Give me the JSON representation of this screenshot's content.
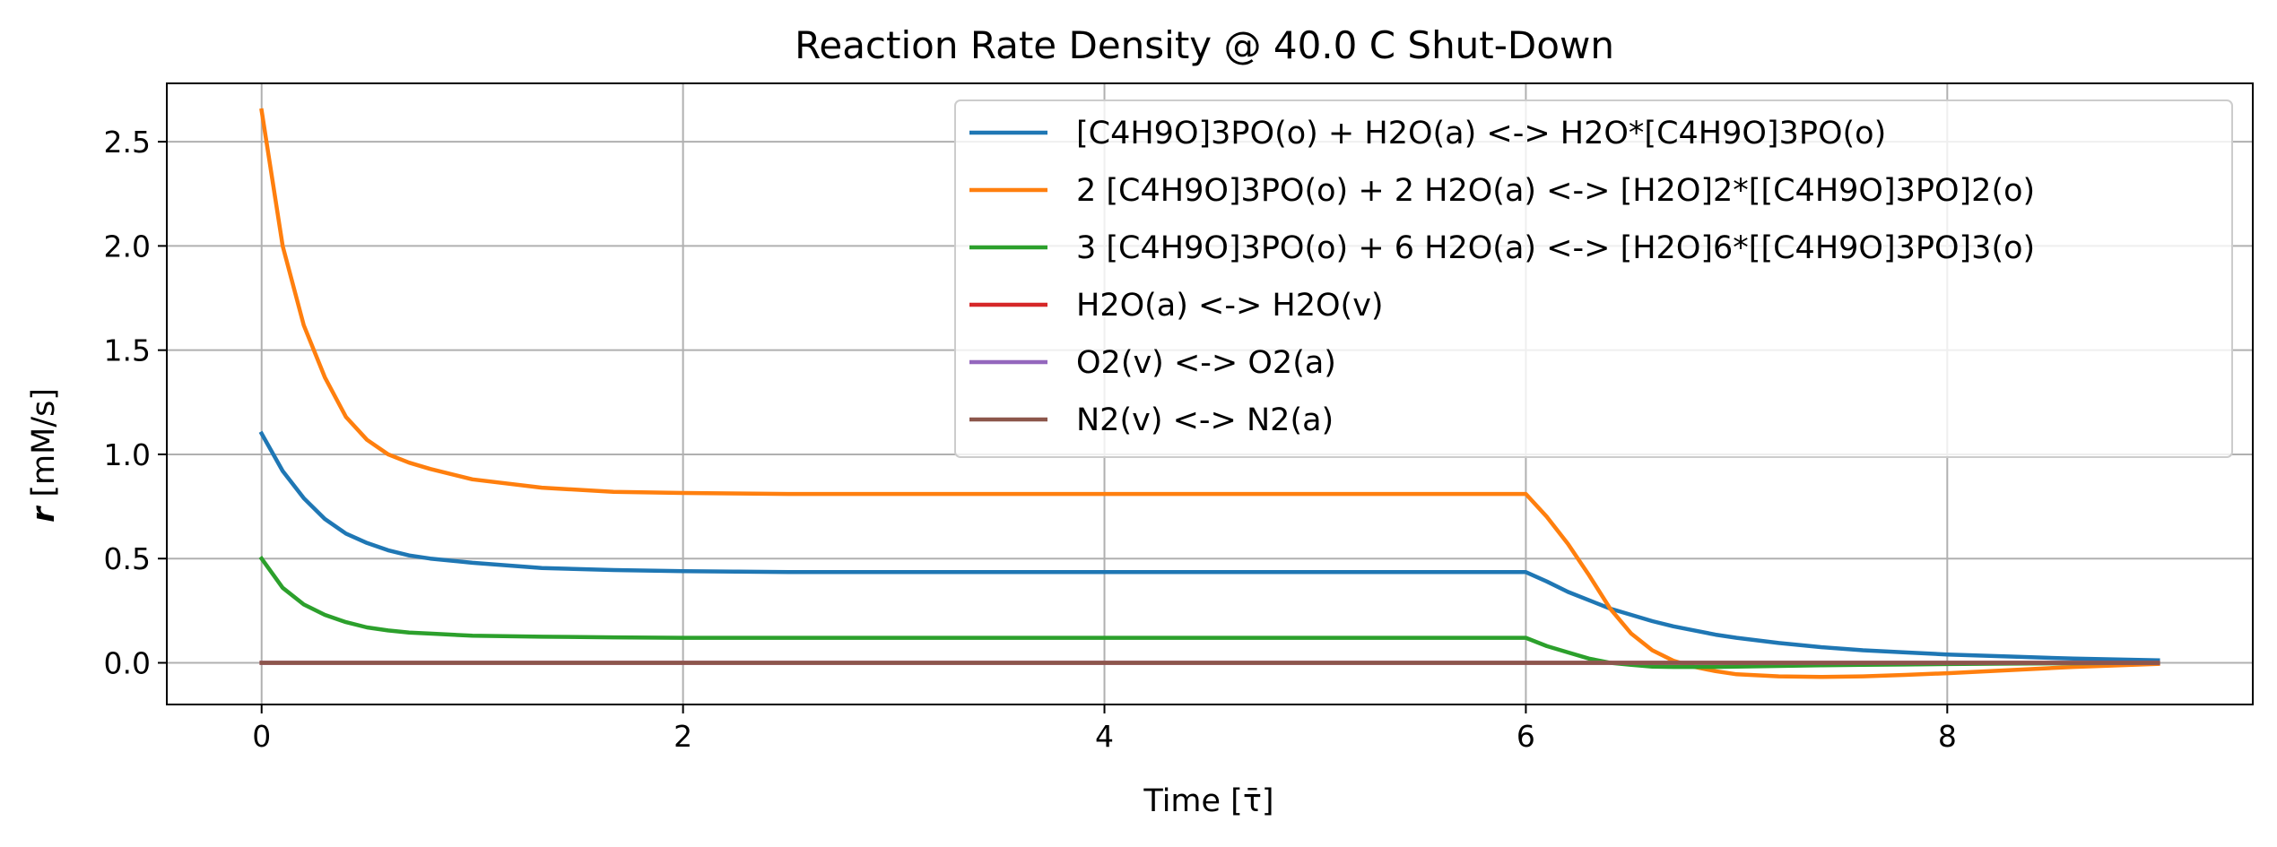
{
  "chart_data": {
    "type": "line",
    "title": "Reaction Rate Density @ 40.0 C Shut-Down",
    "xlabel": "Time [τ̄]",
    "ylabel_symbol": "r",
    "ylabel_unit": " [mM/s]",
    "xlim": [
      -0.45,
      9.45
    ],
    "ylim": [
      -0.2,
      2.78
    ],
    "xticks": [
      0,
      2,
      4,
      6,
      8
    ],
    "yticks": [
      0.0,
      0.5,
      1.0,
      1.5,
      2.0,
      2.5
    ],
    "grid": true,
    "legend_position": "upper right",
    "x": [
      0,
      0.1,
      0.2,
      0.3,
      0.4,
      0.5,
      0.6,
      0.7,
      0.8,
      1.0,
      1.33,
      1.67,
      2.0,
      2.5,
      3.0,
      3.5,
      4.0,
      4.5,
      5.0,
      5.5,
      6.0,
      6.1,
      6.2,
      6.3,
      6.4,
      6.5,
      6.6,
      6.7,
      6.8,
      6.9,
      7.0,
      7.2,
      7.4,
      7.6,
      7.8,
      8.0,
      8.3,
      8.6,
      9.0
    ],
    "series": [
      {
        "name": "[C4H9O]3PO(o) + H2O(a) <-> H2O*[C4H9O]3PO(o)",
        "color": "#1f77b4",
        "values": [
          1.1,
          0.92,
          0.79,
          0.69,
          0.62,
          0.575,
          0.54,
          0.515,
          0.5,
          0.48,
          0.455,
          0.445,
          0.44,
          0.435,
          0.435,
          0.435,
          0.435,
          0.435,
          0.435,
          0.435,
          0.435,
          0.39,
          0.34,
          0.3,
          0.26,
          0.23,
          0.2,
          0.175,
          0.155,
          0.135,
          0.12,
          0.095,
          0.075,
          0.06,
          0.05,
          0.04,
          0.03,
          0.02,
          0.012
        ]
      },
      {
        "name": "2 [C4H9O]3PO(o) + 2 H2O(a) <-> [H2O]2*[[C4H9O]3PO]2(o)",
        "color": "#ff7f0e",
        "values": [
          2.65,
          2.0,
          1.62,
          1.37,
          1.18,
          1.07,
          1.0,
          0.96,
          0.93,
          0.88,
          0.84,
          0.82,
          0.815,
          0.81,
          0.81,
          0.81,
          0.81,
          0.81,
          0.81,
          0.81,
          0.81,
          0.7,
          0.57,
          0.42,
          0.26,
          0.14,
          0.06,
          0.01,
          -0.02,
          -0.04,
          -0.055,
          -0.065,
          -0.068,
          -0.065,
          -0.058,
          -0.05,
          -0.035,
          -0.02,
          -0.005
        ]
      },
      {
        "name": "3 [C4H9O]3PO(o) + 6 H2O(a) <-> [H2O]6*[[C4H9O]3PO]3(o)",
        "color": "#2ca02c",
        "values": [
          0.5,
          0.36,
          0.28,
          0.23,
          0.195,
          0.17,
          0.155,
          0.145,
          0.14,
          0.13,
          0.125,
          0.122,
          0.12,
          0.12,
          0.12,
          0.12,
          0.12,
          0.12,
          0.12,
          0.12,
          0.12,
          0.08,
          0.05,
          0.02,
          0.0,
          -0.01,
          -0.018,
          -0.02,
          -0.02,
          -0.02,
          -0.018,
          -0.015,
          -0.012,
          -0.01,
          -0.008,
          -0.006,
          -0.004,
          -0.002,
          0.0
        ]
      },
      {
        "name": "H2O(a) <-> H2O(v)",
        "color": "#d62728",
        "values": [
          0,
          0,
          0,
          0,
          0,
          0,
          0,
          0,
          0,
          0,
          0,
          0,
          0,
          0,
          0,
          0,
          0,
          0,
          0,
          0,
          0,
          0,
          0,
          0,
          0,
          0,
          0,
          0,
          0,
          0,
          0,
          0,
          0,
          0,
          0,
          0,
          0,
          0,
          0
        ]
      },
      {
        "name": "O2(v) <-> O2(a)",
        "color": "#9467bd",
        "values": [
          0,
          0,
          0,
          0,
          0,
          0,
          0,
          0,
          0,
          0,
          0,
          0,
          0,
          0,
          0,
          0,
          0,
          0,
          0,
          0,
          0,
          0,
          0,
          0,
          0,
          0,
          0,
          0,
          0,
          0,
          0,
          0,
          0,
          0,
          0,
          0,
          0,
          0,
          0
        ]
      },
      {
        "name": "N2(v) <-> N2(a)",
        "color": "#8c564b",
        "values": [
          0,
          0,
          0,
          0,
          0,
          0,
          0,
          0,
          0,
          0,
          0,
          0,
          0,
          0,
          0,
          0,
          0,
          0,
          0,
          0,
          0,
          0,
          0,
          0,
          0,
          0,
          0,
          0,
          0,
          0,
          0,
          0,
          0,
          0,
          0,
          0,
          0,
          0,
          0
        ]
      }
    ]
  }
}
